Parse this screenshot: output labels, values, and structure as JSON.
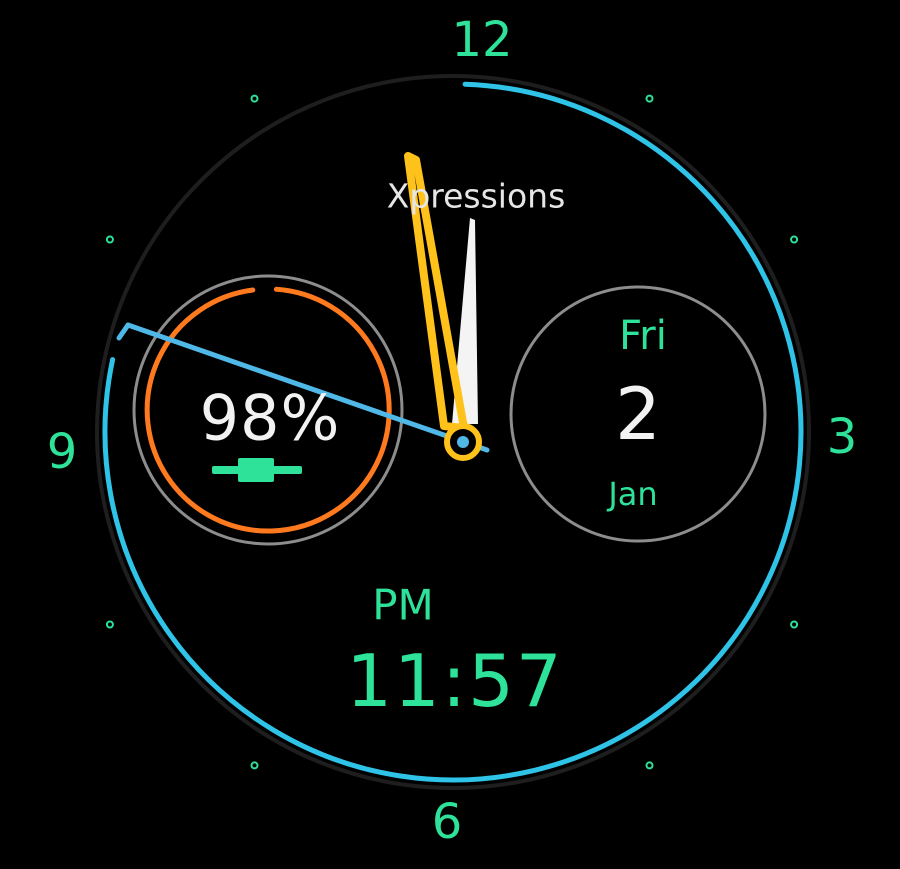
{
  "colors": {
    "accent_green": "#2ee29a",
    "seconds_ring": "#2fc3e8",
    "battery_ring": "#ff7a1e",
    "hour_hand": "#ffc21a",
    "minute_hand": "#f4f4f4",
    "second_hand": "#4fb8e6",
    "bezel_gray": "#8d8d8d",
    "background": "#000000"
  },
  "dial": {
    "hour_numbers": {
      "twelve": "12",
      "three": "3",
      "six": "6",
      "nine": "9"
    }
  },
  "brand": "Xpressions",
  "battery": {
    "percent_text": "98%",
    "level": 0.98,
    "icon": "battery-icon"
  },
  "date": {
    "day_name": "Fri",
    "day_number": "2",
    "month": "Jan"
  },
  "digital": {
    "ampm": "PM",
    "time": "11:57"
  },
  "analog": {
    "hour": 11,
    "minute": 57,
    "second": 47
  }
}
